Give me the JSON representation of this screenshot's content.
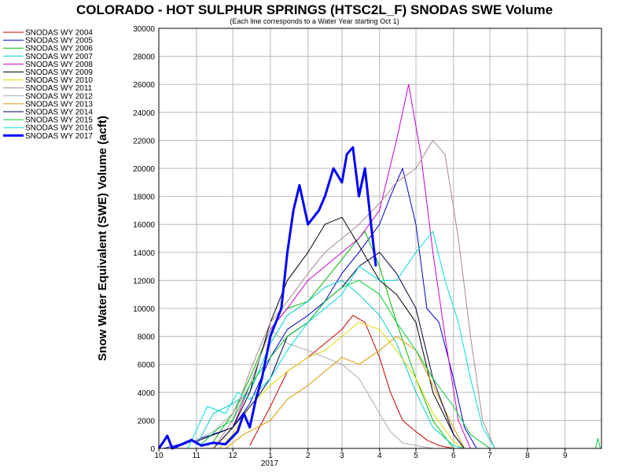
{
  "chart_data": {
    "type": "line",
    "title": "COLORADO - HOT SULPHUR SPRINGS (HTSC2L_F) SNODAS SWE Volume",
    "subtitle": "(Each line corresponds to a Water Year starting Oct 1)",
    "xlabel": "",
    "ylabel": "Snow Water Equivalent (SWE) Volume (acft)",
    "ylim": [
      0,
      30000
    ],
    "y_ticks": [
      0,
      2000,
      4000,
      6000,
      8000,
      10000,
      12000,
      14000,
      16000,
      18000,
      20000,
      22000,
      24000,
      26000,
      28000,
      30000
    ],
    "y_tick_labels": [
      "0",
      "2000",
      "4000",
      "6000",
      "8000",
      "10000",
      "12000",
      "14000",
      "16000",
      "18000",
      "20000",
      "22000",
      "24000",
      "26000",
      "28000",
      "30000"
    ],
    "x_ticks": [
      "2016-10-01",
      "2016-11-01",
      "2016-12-01",
      "2017-01-01",
      "2017-02-01",
      "2017-03-01",
      "2017-04-01",
      "2017-05-01",
      "2017-06-01",
      "2017-07-01",
      "2017-08-01",
      "2017-09-01"
    ],
    "x_tick_labels": [
      "10",
      "11",
      "12",
      "1",
      "2",
      "3",
      "4",
      "5",
      "6",
      "7",
      "8",
      "9"
    ],
    "x_year_label": "2017",
    "xlim": [
      "2016-10-01",
      "2017-09-30"
    ],
    "grid": true,
    "legend_position": "left",
    "series": [
      {
        "name": "SNODAS WY 2004",
        "color": "#cc0000",
        "width": 1,
        "x": [
          "2016-12-15",
          "2017-01-01",
          "2017-01-15",
          "2017-02-01",
          "2017-02-15",
          "2017-03-01",
          "2017-03-10",
          "2017-03-20",
          "2017-04-01",
          "2017-04-10",
          "2017-04-20",
          "2017-05-01",
          "2017-05-10",
          "2017-05-20",
          "2017-06-01"
        ],
        "y": [
          200,
          3000,
          5500,
          6500,
          7500,
          8500,
          9500,
          9000,
          6500,
          4000,
          2000,
          1200,
          600,
          200,
          0
        ]
      },
      {
        "name": "SNODAS WY 2005",
        "color": "#0000cc",
        "width": 1,
        "x": [
          "2016-10-05",
          "2016-11-01",
          "2016-12-01",
          "2016-12-15",
          "2017-01-01",
          "2017-01-15",
          "2017-02-01",
          "2017-02-15",
          "2017-03-01",
          "2017-03-15",
          "2017-04-01",
          "2017-04-10",
          "2017-04-20",
          "2017-05-01",
          "2017-05-10",
          "2017-05-20",
          "2017-06-01",
          "2017-06-10",
          "2017-06-20"
        ],
        "y": [
          0,
          600,
          1500,
          3200,
          6500,
          8500,
          9500,
          10500,
          12500,
          14000,
          16000,
          18000,
          20000,
          16000,
          10000,
          9000,
          5000,
          1500,
          0
        ]
      },
      {
        "name": "SNODAS WY 2006",
        "color": "#00bb00",
        "width": 1,
        "x": [
          "2016-11-15",
          "2016-12-01",
          "2016-12-15",
          "2017-01-01",
          "2017-01-15",
          "2017-02-01",
          "2017-02-15",
          "2017-03-01",
          "2017-03-10",
          "2017-03-20",
          "2017-04-01",
          "2017-04-15",
          "2017-05-01",
          "2017-05-15",
          "2017-06-01"
        ],
        "y": [
          500,
          2500,
          5000,
          8500,
          10000,
          10500,
          12000,
          13500,
          14500,
          15500,
          13000,
          9000,
          5000,
          2000,
          0
        ]
      },
      {
        "name": "SNODAS WY 2007",
        "color": "#00cccc",
        "width": 1,
        "x": [
          "2016-11-01",
          "2016-11-15",
          "2016-12-01",
          "2016-12-15",
          "2017-01-01",
          "2017-01-15",
          "2017-02-01",
          "2017-02-15",
          "2017-03-01",
          "2017-03-15",
          "2017-04-01",
          "2017-04-15",
          "2017-05-01",
          "2017-05-15",
          "2017-06-01",
          "2017-06-10"
        ],
        "y": [
          200,
          2500,
          3200,
          4000,
          7500,
          9500,
          10500,
          11500,
          12000,
          11000,
          9500,
          7500,
          4000,
          1500,
          200,
          0
        ]
      },
      {
        "name": "SNODAS WY 2008",
        "color": "#cc00cc",
        "width": 1,
        "x": [
          "2016-11-15",
          "2016-12-01",
          "2016-12-15",
          "2017-01-01",
          "2017-01-15",
          "2017-02-01",
          "2017-02-15",
          "2017-03-01",
          "2017-03-15",
          "2017-04-01",
          "2017-04-15",
          "2017-04-25",
          "2017-05-05",
          "2017-05-15",
          "2017-05-25",
          "2017-06-05",
          "2017-06-15"
        ],
        "y": [
          0,
          1500,
          4500,
          8500,
          10000,
          12000,
          13000,
          14000,
          15000,
          17000,
          22000,
          26000,
          21000,
          14000,
          8000,
          2000,
          0
        ]
      },
      {
        "name": "SNODAS WY 2009",
        "color": "#000000",
        "width": 1,
        "x": [
          "2016-11-15",
          "2016-12-01",
          "2016-12-15",
          "2017-01-01",
          "2017-01-15",
          "2017-02-01",
          "2017-02-15",
          "2017-03-01",
          "2017-03-15",
          "2017-04-01",
          "2017-04-15",
          "2017-05-01",
          "2017-05-15",
          "2017-06-01",
          "2017-06-10"
        ],
        "y": [
          0,
          1500,
          4000,
          9000,
          12000,
          14000,
          16000,
          16500,
          14500,
          12000,
          11000,
          9000,
          4000,
          1000,
          0
        ]
      },
      {
        "name": "SNODAS WY 2010",
        "color": "#dddd00",
        "width": 1,
        "x": [
          "2016-11-20",
          "2016-12-01",
          "2016-12-15",
          "2017-01-01",
          "2017-01-15",
          "2017-02-01",
          "2017-02-15",
          "2017-03-01",
          "2017-03-15",
          "2017-04-01",
          "2017-04-15",
          "2017-05-01",
          "2017-05-15",
          "2017-06-01",
          "2017-06-10"
        ],
        "y": [
          0,
          1000,
          3000,
          4500,
          5500,
          6500,
          7000,
          8000,
          9000,
          8500,
          7000,
          5000,
          2500,
          500,
          0
        ]
      },
      {
        "name": "SNODAS WY 2011",
        "color": "#aa8888",
        "width": 1,
        "x": [
          "2016-11-15",
          "2016-12-01",
          "2016-12-15",
          "2017-01-01",
          "2017-01-15",
          "2017-02-01",
          "2017-02-15",
          "2017-03-01",
          "2017-03-15",
          "2017-04-01",
          "2017-04-15",
          "2017-05-01",
          "2017-05-15",
          "2017-05-25",
          "2017-06-05",
          "2017-06-15",
          "2017-06-25",
          "2017-07-05"
        ],
        "y": [
          0,
          2000,
          5500,
          9000,
          10500,
          12500,
          14000,
          15000,
          16000,
          17500,
          19000,
          20000,
          22000,
          21000,
          15000,
          8000,
          2000,
          0
        ]
      },
      {
        "name": "SNODAS WY 2012",
        "color": "#aaaaaa",
        "width": 1,
        "x": [
          "2016-10-20",
          "2016-11-01",
          "2016-11-15",
          "2016-12-01",
          "2016-12-15",
          "2017-01-01",
          "2017-01-15",
          "2017-02-01",
          "2017-02-15",
          "2017-03-01",
          "2017-03-15",
          "2017-04-01",
          "2017-04-10",
          "2017-04-20",
          "2017-05-01",
          "2017-05-15",
          "2017-06-01"
        ],
        "y": [
          200,
          600,
          1200,
          2500,
          4500,
          8500,
          7500,
          7000,
          6500,
          6000,
          5000,
          2500,
          1200,
          400,
          200,
          0,
          0
        ]
      },
      {
        "name": "SNODAS WY 2013",
        "color": "#dd9900",
        "width": 1,
        "x": [
          "2016-11-25",
          "2016-12-10",
          "2017-01-01",
          "2017-01-15",
          "2017-02-01",
          "2017-02-15",
          "2017-03-01",
          "2017-03-15",
          "2017-04-01",
          "2017-04-15",
          "2017-05-01",
          "2017-05-15",
          "2017-06-01",
          "2017-06-10"
        ],
        "y": [
          0,
          1000,
          2000,
          3500,
          4500,
          5500,
          6500,
          6000,
          7000,
          8000,
          7000,
          4500,
          1500,
          0
        ]
      },
      {
        "name": "SNODAS WY 2014",
        "color": "#000044",
        "width": 1,
        "x": [
          "2016-11-01",
          "2016-12-01",
          "2016-12-20",
          "2017-01-01",
          "2017-01-15",
          "2017-02-01",
          "2017-02-15",
          "2017-03-01",
          "2017-03-15",
          "2017-04-01",
          "2017-04-15",
          "2017-05-01",
          "2017-05-15",
          "2017-06-01",
          "2017-06-10"
        ],
        "y": [
          500,
          1500,
          3500,
          5000,
          8000,
          9000,
          10500,
          11500,
          13000,
          14000,
          12500,
          10000,
          5000,
          1000,
          0
        ]
      },
      {
        "name": "SNODAS WY 2015",
        "color": "#00cc33",
        "width": 1,
        "x": [
          "2016-11-05",
          "2016-11-20",
          "2016-12-01",
          "2016-12-15",
          "2017-01-01",
          "2017-01-15",
          "2017-02-01",
          "2017-02-15",
          "2017-03-01",
          "2017-03-15",
          "2017-04-01",
          "2017-04-15",
          "2017-05-01",
          "2017-05-15",
          "2017-06-01",
          "2017-06-15",
          "2017-07-01",
          "2017-09-26",
          "2017-09-28",
          "2017-09-30"
        ],
        "y": [
          300,
          1500,
          2000,
          4500,
          6500,
          8000,
          9000,
          10500,
          11500,
          12000,
          11000,
          9000,
          7000,
          5000,
          3000,
          1000,
          0,
          0,
          700,
          0
        ]
      },
      {
        "name": "SNODAS WY 2016",
        "color": "#00dddd",
        "width": 1,
        "x": [
          "2016-10-25",
          "2016-11-10",
          "2016-11-25",
          "2016-12-05",
          "2016-12-15",
          "2017-01-01",
          "2017-01-15",
          "2017-02-01",
          "2017-02-15",
          "2017-03-01",
          "2017-03-15",
          "2017-04-01",
          "2017-04-15",
          "2017-05-01",
          "2017-05-15",
          "2017-05-25",
          "2017-06-05",
          "2017-06-15",
          "2017-06-25",
          "2017-07-05"
        ],
        "y": [
          0,
          3000,
          2500,
          4000,
          3500,
          5000,
          7000,
          9000,
          10000,
          11000,
          13000,
          12000,
          12000,
          14000,
          15500,
          12000,
          9000,
          5000,
          1500,
          0
        ]
      },
      {
        "name": "SNODAS WY 2017",
        "color": "#0000ff",
        "width": 3,
        "x": [
          "2016-10-01",
          "2016-10-05",
          "2016-10-08",
          "2016-10-12",
          "2016-10-20",
          "2016-10-28",
          "2016-11-05",
          "2016-11-15",
          "2016-11-25",
          "2016-12-05",
          "2016-12-10",
          "2016-12-15",
          "2016-12-20",
          "2016-12-25",
          "2017-01-01",
          "2017-01-10",
          "2017-01-15",
          "2017-01-20",
          "2017-01-25",
          "2017-02-01",
          "2017-02-10",
          "2017-02-15",
          "2017-02-22",
          "2017-03-01",
          "2017-03-05",
          "2017-03-10",
          "2017-03-15",
          "2017-03-20",
          "2017-03-25",
          "2017-03-29"
        ],
        "y": [
          0,
          500,
          900,
          0,
          300,
          600,
          200,
          400,
          300,
          1200,
          2500,
          1500,
          3500,
          5000,
          8000,
          10000,
          14000,
          17000,
          18800,
          16000,
          17000,
          18000,
          20000,
          19000,
          21000,
          21500,
          18000,
          20000,
          16000,
          13000
        ]
      }
    ]
  }
}
